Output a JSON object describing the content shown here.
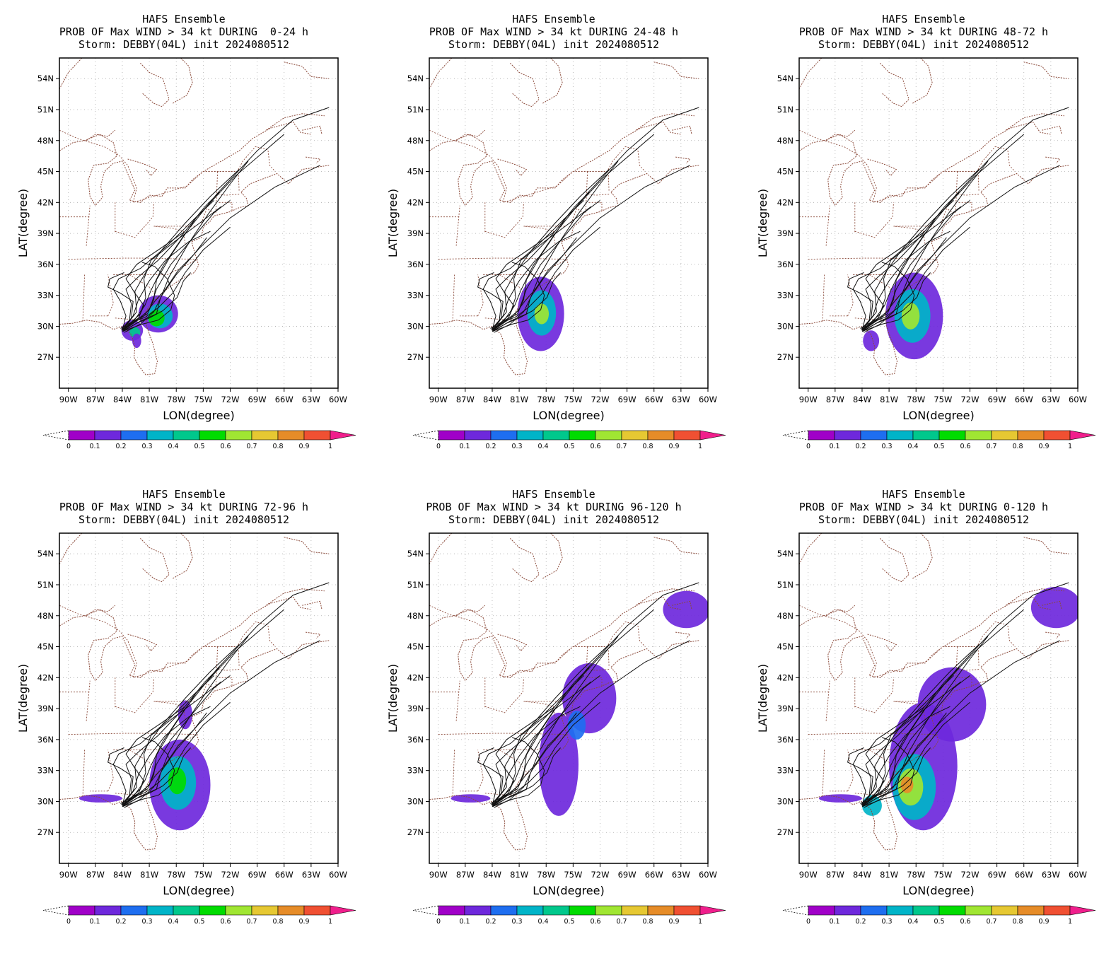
{
  "figure": {
    "panels": [
      {
        "title_line1": "HAFS Ensemble",
        "title_line2": "PROB OF Max WIND > 34 kt DURING  0-24 h",
        "title_line3": "Storm: DEBBY(04L) init 2024080512",
        "period": "0-24 h"
      },
      {
        "title_line1": "HAFS Ensemble",
        "title_line2": "PROB OF Max WIND > 34 kt DURING 24-48 h",
        "title_line3": "Storm: DEBBY(04L) init 2024080512",
        "period": "24-48 h"
      },
      {
        "title_line1": "HAFS Ensemble",
        "title_line2": "PROB OF Max WIND > 34 kt DURING 48-72 h",
        "title_line3": "Storm: DEBBY(04L) init 2024080512",
        "period": "48-72 h"
      },
      {
        "title_line1": "HAFS Ensemble",
        "title_line2": "PROB OF Max WIND > 34 kt DURING 72-96 h",
        "title_line3": "Storm: DEBBY(04L) init 2024080512",
        "period": "72-96 h"
      },
      {
        "title_line1": "HAFS Ensemble",
        "title_line2": "PROB OF Max WIND > 34 kt DURING 96-120 h",
        "title_line3": "Storm: DEBBY(04L) init 2024080512",
        "period": "96-120 h"
      },
      {
        "title_line1": "HAFS Ensemble",
        "title_line2": "PROB OF Max WIND > 34 kt DURING 0-120 h",
        "title_line3": "Storm: DEBBY(04L) init 2024080512",
        "period": "0-120 h"
      }
    ],
    "xlabel": "LON(degree)",
    "ylabel": "LAT(degree)",
    "lon_ticks": [
      "90W",
      "87W",
      "84W",
      "81W",
      "78W",
      "75W",
      "72W",
      "69W",
      "66W",
      "63W",
      "60W"
    ],
    "lat_ticks": [
      "54N",
      "51N",
      "48N",
      "45N",
      "42N",
      "39N",
      "36N",
      "33N",
      "30N",
      "27N"
    ],
    "colorbar_labels": [
      "0",
      "0.1",
      "0.2",
      "0.3",
      "0.4",
      "0.5",
      "0.6",
      "0.7",
      "0.8",
      "0.9",
      "1"
    ],
    "colorbar_colors": [
      "#a000c8",
      "#6e28dc",
      "#1e6ef0",
      "#00b4c8",
      "#00c88c",
      "#00dc00",
      "#a0e632",
      "#e6c832",
      "#e68c28",
      "#f05032"
    ],
    "colorbar_end_color": "#f01e8c"
  },
  "chart_data": {
    "type": "heatmap",
    "storm": "DEBBY(04L)",
    "init": "2024080512",
    "lon_range": [
      -91,
      -60
    ],
    "lat_range": [
      24,
      56
    ],
    "probability_scale": [
      0,
      0.1,
      0.2,
      0.3,
      0.4,
      0.5,
      0.6,
      0.7,
      0.8,
      0.9,
      1
    ],
    "blobs": [
      [
        {
          "lon": -80.0,
          "lat": 31.2,
          "rlon": 2.2,
          "rlat": 1.8,
          "p": 0.1
        },
        {
          "lon": -79.8,
          "lat": 31.0,
          "rlon": 1.4,
          "rlat": 1.2,
          "p": 0.3
        },
        {
          "lon": -80.2,
          "lat": 30.8,
          "rlon": 0.9,
          "rlat": 0.8,
          "p": 0.5
        },
        {
          "lon": -82.9,
          "lat": 29.6,
          "rlon": 1.2,
          "rlat": 1.0,
          "p": 0.1
        },
        {
          "lon": -82.6,
          "lat": 29.4,
          "rlon": 0.6,
          "rlat": 0.5,
          "p": 0.4
        },
        {
          "lon": -82.4,
          "lat": 28.6,
          "rlon": 0.5,
          "rlat": 0.7,
          "p": 0.1
        }
      ],
      [
        {
          "lon": -78.6,
          "lat": 31.2,
          "rlon": 2.6,
          "rlat": 3.6,
          "p": 0.1
        },
        {
          "lon": -78.5,
          "lat": 31.3,
          "rlon": 1.6,
          "rlat": 2.2,
          "p": 0.3
        },
        {
          "lon": -78.5,
          "lat": 31.2,
          "rlon": 0.8,
          "rlat": 1.0,
          "p": 0.6
        }
      ],
      [
        {
          "lon": -78.2,
          "lat": 31.0,
          "rlon": 3.2,
          "rlat": 4.2,
          "p": 0.1
        },
        {
          "lon": -78.4,
          "lat": 31.0,
          "rlon": 2.0,
          "rlat": 2.6,
          "p": 0.3
        },
        {
          "lon": -78.6,
          "lat": 31.0,
          "rlon": 1.0,
          "rlat": 1.3,
          "p": 0.6
        },
        {
          "lon": -83.0,
          "lat": 28.6,
          "rlon": 0.9,
          "rlat": 1.0,
          "p": 0.1
        }
      ],
      [
        {
          "lon": -77.6,
          "lat": 31.6,
          "rlon": 3.4,
          "rlat": 4.4,
          "p": 0.1
        },
        {
          "lon": -77.8,
          "lat": 31.8,
          "rlon": 2.0,
          "rlat": 2.6,
          "p": 0.3
        },
        {
          "lon": -77.9,
          "lat": 32.0,
          "rlon": 1.0,
          "rlat": 1.3,
          "p": 0.5
        },
        {
          "lon": -86.4,
          "lat": 30.3,
          "rlon": 2.4,
          "rlat": 0.4,
          "p": 0.1
        },
        {
          "lon": -77.0,
          "lat": 38.4,
          "rlon": 0.8,
          "rlat": 1.4,
          "p": 0.1
        }
      ],
      [
        {
          "lon": -76.6,
          "lat": 33.6,
          "rlon": 2.2,
          "rlat": 5.0,
          "p": 0.1
        },
        {
          "lon": -73.2,
          "lat": 40.0,
          "rlon": 3.0,
          "rlat": 3.4,
          "p": 0.1
        },
        {
          "lon": -62.4,
          "lat": 48.6,
          "rlon": 2.6,
          "rlat": 1.8,
          "p": 0.1
        },
        {
          "lon": -74.6,
          "lat": 37.4,
          "rlon": 1.0,
          "rlat": 1.4,
          "p": 0.2
        },
        {
          "lon": -86.4,
          "lat": 30.3,
          "rlon": 2.2,
          "rlat": 0.4,
          "p": 0.1
        }
      ],
      [
        {
          "lon": -77.2,
          "lat": 33.4,
          "rlon": 3.8,
          "rlat": 6.2,
          "p": 0.1
        },
        {
          "lon": -74.0,
          "lat": 39.4,
          "rlon": 3.8,
          "rlat": 3.6,
          "p": 0.1
        },
        {
          "lon": -62.4,
          "lat": 48.8,
          "rlon": 2.8,
          "rlat": 2.0,
          "p": 0.1
        },
        {
          "lon": -78.2,
          "lat": 31.4,
          "rlon": 2.4,
          "rlat": 3.2,
          "p": 0.3
        },
        {
          "lon": -78.6,
          "lat": 31.4,
          "rlon": 1.4,
          "rlat": 1.8,
          "p": 0.6
        },
        {
          "lon": -79.0,
          "lat": 31.6,
          "rlon": 0.7,
          "rlat": 0.8,
          "p": 0.8
        },
        {
          "lon": -82.9,
          "lat": 29.6,
          "rlon": 1.1,
          "rlat": 1.0,
          "p": 0.3
        },
        {
          "lon": -86.4,
          "lat": 30.3,
          "rlon": 2.4,
          "rlat": 0.4,
          "p": 0.1
        }
      ]
    ],
    "tracks_per_panel": "same ensemble tracks in all panels",
    "tracks": [
      [
        [
          -84.0,
          29.6
        ],
        [
          -82.5,
          30.8
        ],
        [
          -81.5,
          32.0
        ],
        [
          -80.8,
          33.5
        ],
        [
          -79.5,
          35.8
        ],
        [
          -77.0,
          39.0
        ],
        [
          -73.5,
          42.8
        ],
        [
          -69.0,
          47.0
        ],
        [
          -65.0,
          50.0
        ],
        [
          -61.0,
          51.2
        ]
      ],
      [
        [
          -84.0,
          29.5
        ],
        [
          -82.0,
          30.5
        ],
        [
          -80.2,
          31.2
        ],
        [
          -79.8,
          32.6
        ],
        [
          -78.8,
          34.8
        ],
        [
          -76.8,
          37.8
        ],
        [
          -74.5,
          40.8
        ],
        [
          -72.0,
          43.8
        ],
        [
          -70.0,
          46.0
        ]
      ],
      [
        [
          -84.2,
          29.8
        ],
        [
          -82.6,
          30.6
        ],
        [
          -81.2,
          31.2
        ],
        [
          -80.5,
          32.6
        ],
        [
          -80.2,
          34.5
        ],
        [
          -78.5,
          37.0
        ],
        [
          -75.8,
          40.5
        ],
        [
          -71.5,
          44.5
        ],
        [
          -66.0,
          48.6
        ]
      ],
      [
        [
          -83.8,
          29.4
        ],
        [
          -82.0,
          30.2
        ],
        [
          -80.5,
          31.4
        ],
        [
          -79.6,
          33.0
        ],
        [
          -78.0,
          35.0
        ],
        [
          -75.5,
          37.5
        ],
        [
          -72.0,
          40.5
        ],
        [
          -67.0,
          43.5
        ],
        [
          -62.0,
          45.6
        ]
      ],
      [
        [
          -84.0,
          29.6
        ],
        [
          -82.4,
          30.6
        ],
        [
          -81.0,
          31.6
        ],
        [
          -80.2,
          33.6
        ],
        [
          -78.6,
          36.0
        ],
        [
          -76.2,
          38.5
        ],
        [
          -73.8,
          41.0
        ],
        [
          -72.0,
          42.2
        ]
      ],
      [
        [
          -84.1,
          29.7
        ],
        [
          -82.8,
          30.4
        ],
        [
          -81.4,
          30.9
        ],
        [
          -80.0,
          31.8
        ],
        [
          -78.4,
          33.2
        ],
        [
          -77.0,
          35.2
        ],
        [
          -75.0,
          37.4
        ],
        [
          -72.0,
          39.6
        ]
      ],
      [
        [
          -83.9,
          29.5
        ],
        [
          -82.4,
          30.3
        ],
        [
          -81.0,
          30.8
        ],
        [
          -79.5,
          31.5
        ],
        [
          -77.9,
          32.8
        ],
        [
          -77.2,
          34.4
        ],
        [
          -76.4,
          35.2
        ]
      ],
      [
        [
          -84.0,
          29.6
        ],
        [
          -83.2,
          30.6
        ],
        [
          -83.0,
          32.2
        ],
        [
          -83.6,
          33.6
        ],
        [
          -82.2,
          34.8
        ],
        [
          -80.0,
          36.4
        ],
        [
          -77.4,
          38.8
        ],
        [
          -74.8,
          41.6
        ],
        [
          -73.2,
          43.0
        ]
      ],
      [
        [
          -83.9,
          29.6
        ],
        [
          -82.0,
          31.2
        ],
        [
          -81.4,
          32.8
        ],
        [
          -81.6,
          34.6
        ],
        [
          -80.8,
          36.4
        ],
        [
          -78.2,
          38.2
        ],
        [
          -75.4,
          40.0
        ],
        [
          -73.0,
          41.6
        ]
      ],
      [
        [
          -84.0,
          29.6
        ],
        [
          -83.6,
          31.0
        ],
        [
          -84.2,
          32.4
        ],
        [
          -85.0,
          33.6
        ],
        [
          -84.4,
          34.6
        ],
        [
          -82.0,
          35.6
        ],
        [
          -79.0,
          37.8
        ],
        [
          -76.0,
          40.4
        ],
        [
          -73.8,
          42.2
        ]
      ],
      [
        [
          -84.0,
          29.6
        ],
        [
          -82.2,
          30.8
        ],
        [
          -81.6,
          32.0
        ],
        [
          -82.6,
          33.2
        ],
        [
          -83.6,
          34.6
        ],
        [
          -82.4,
          36.0
        ],
        [
          -80.0,
          37.4
        ],
        [
          -77.0,
          39.2
        ]
      ],
      [
        [
          -84.0,
          29.5
        ],
        [
          -81.8,
          30.2
        ],
        [
          -80.0,
          30.6
        ],
        [
          -78.6,
          31.6
        ],
        [
          -78.2,
          33.0
        ],
        [
          -79.0,
          34.6
        ],
        [
          -80.4,
          35.8
        ],
        [
          -81.8,
          36.2
        ]
      ],
      [
        [
          -84.0,
          29.6
        ],
        [
          -82.8,
          31.0
        ],
        [
          -82.2,
          32.6
        ],
        [
          -81.0,
          34.4
        ],
        [
          -79.2,
          36.4
        ],
        [
          -76.6,
          38.2
        ],
        [
          -74.2,
          39.2
        ]
      ],
      [
        [
          -84.1,
          29.7
        ],
        [
          -83.0,
          30.8
        ],
        [
          -82.8,
          32.4
        ],
        [
          -84.2,
          33.2
        ],
        [
          -85.6,
          33.8
        ],
        [
          -85.4,
          34.6
        ],
        [
          -83.8,
          35.2
        ]
      ],
      [
        [
          -83.9,
          29.6
        ],
        [
          -81.6,
          31.0
        ],
        [
          -80.4,
          32.4
        ],
        [
          -79.2,
          33.6
        ],
        [
          -77.8,
          35.4
        ],
        [
          -76.0,
          37.0
        ],
        [
          -74.6,
          38.6
        ]
      ],
      [
        [
          -84.0,
          29.6
        ],
        [
          -82.4,
          31.4
        ],
        [
          -82.6,
          33.4
        ],
        [
          -81.4,
          35.2
        ],
        [
          -79.6,
          37.4
        ],
        [
          -77.0,
          40.0
        ],
        [
          -74.2,
          42.6
        ],
        [
          -71.0,
          45.2
        ]
      ]
    ]
  }
}
